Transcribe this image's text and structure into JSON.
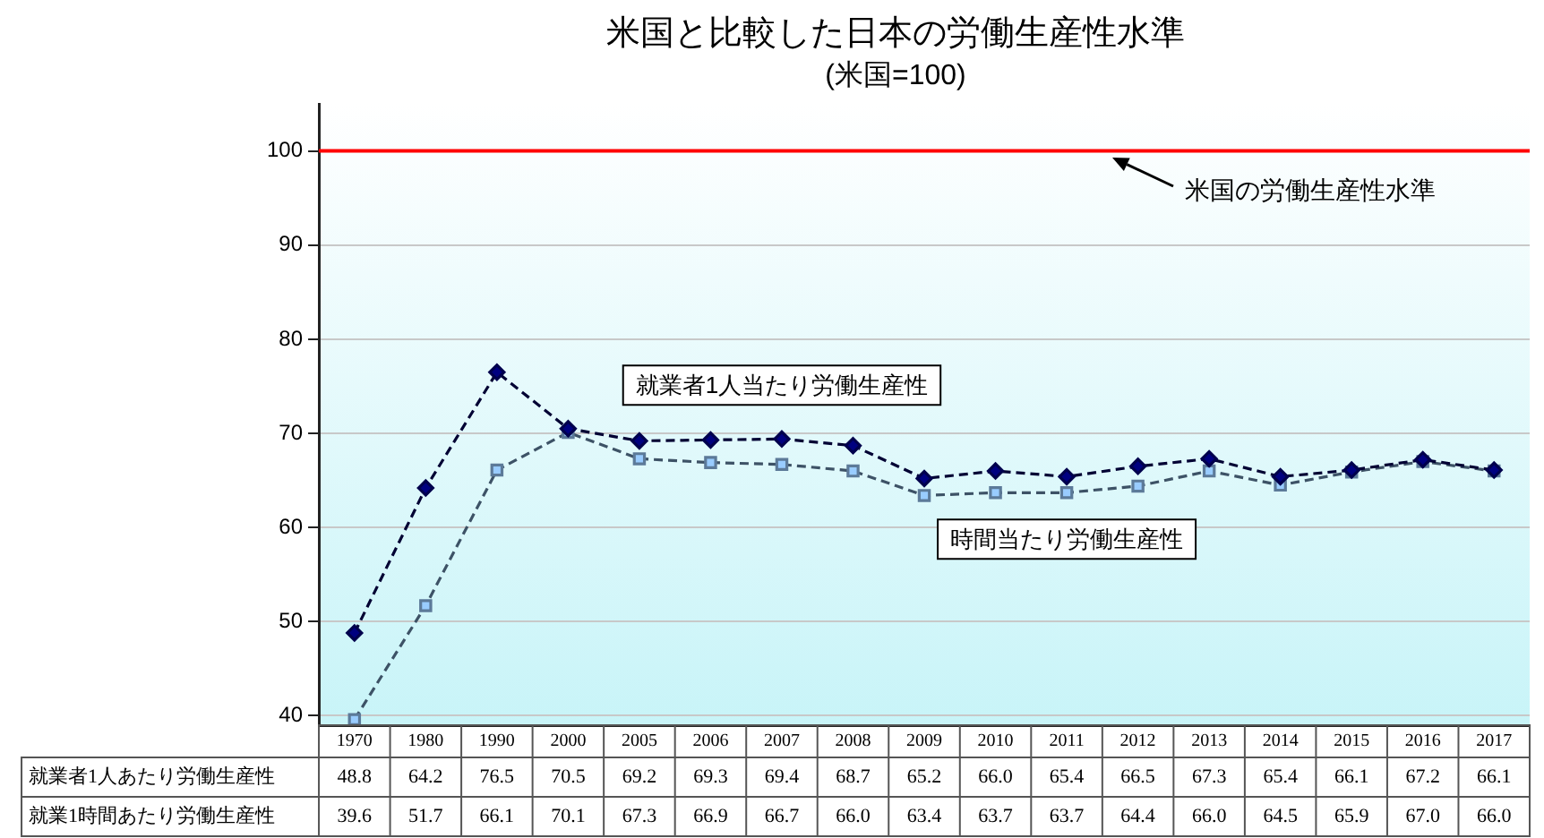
{
  "chart_data": {
    "type": "line",
    "title": "米国と比較した日本の労働生産性水準",
    "subtitle": "(米国=100)",
    "categories": [
      "1970",
      "1980",
      "1990",
      "2000",
      "2005",
      "2006",
      "2007",
      "2008",
      "2009",
      "2010",
      "2011",
      "2012",
      "2013",
      "2014",
      "2015",
      "2016",
      "2017"
    ],
    "series": [
      {
        "name": "就業者1人当たり労働生産性",
        "color": "#000080",
        "marker": "diamond",
        "values": [
          48.8,
          64.2,
          76.5,
          70.5,
          69.2,
          69.3,
          69.4,
          68.7,
          65.2,
          66.0,
          65.4,
          66.5,
          67.3,
          65.4,
          66.1,
          67.2,
          66.1
        ],
        "value_labels": [
          "48.8",
          "64.2",
          "76.5",
          "70.5",
          "69.2",
          "69.3",
          "69.4",
          "68.7",
          "65.2",
          "66.0",
          "65.4",
          "66.5",
          "67.3",
          "65.4",
          "66.1",
          "67.2",
          "66.1"
        ]
      },
      {
        "name": "時間当たり労働生産性",
        "color": "#99ccff",
        "marker": "square",
        "values": [
          39.6,
          51.7,
          66.1,
          70.1,
          67.3,
          66.9,
          66.7,
          66.0,
          63.4,
          63.7,
          63.7,
          64.4,
          66.0,
          64.5,
          65.9,
          67.0,
          66.0
        ],
        "value_labels": [
          "39.6",
          "51.7",
          "66.1",
          "70.1",
          "67.3",
          "66.9",
          "66.7",
          "66.0",
          "63.4",
          "63.7",
          "63.7",
          "64.4",
          "66.0",
          "64.5",
          "65.9",
          "67.0",
          "66.0"
        ]
      }
    ],
    "ylim": [
      39,
      105
    ],
    "yticks": [
      40,
      50,
      60,
      70,
      80,
      90,
      100
    ],
    "grid": "y",
    "legend": false,
    "line_style": "dashed",
    "ref_lines": [
      {
        "axis": "y",
        "value": 100,
        "label": "米国の労働生産性水準",
        "color": "#ff0000"
      }
    ],
    "annotations": [
      "就業者1人あたり労働生産性",
      "就業1時間あたり労働生産性"
    ]
  }
}
